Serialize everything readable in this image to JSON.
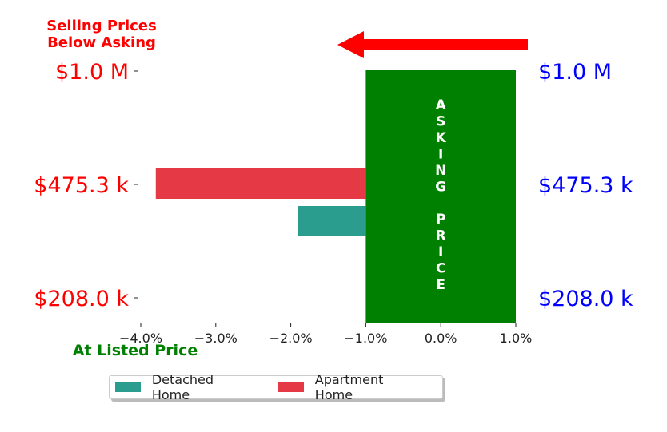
{
  "chart_data": {
    "type": "bar",
    "orientation": "horizontal",
    "title": "Selling Prices\nBelow Asking",
    "xlabel": "At Listed Price",
    "x_ticks": [
      -4.0,
      -3.0,
      -2.0,
      -1.0,
      0.0,
      1.0
    ],
    "x_tick_labels": [
      "−4.0%",
      "−3.0%",
      "−2.0%",
      "−1.0%",
      "0.0%",
      "1.0%"
    ],
    "xlim": [
      -4.0,
      1.0
    ],
    "y_tick_labels_left": [
      "$1.0 M",
      "$475.3 k",
      "$208.0 k"
    ],
    "y_tick_labels_right": [
      "$1.0 M",
      "$475.3 k",
      "$208.0 k"
    ],
    "series": [
      {
        "name": "Detached Home",
        "color": "#2a9d8f",
        "values": [
          -1.9
        ]
      },
      {
        "name": "Apartment Home",
        "color": "#e63946",
        "values": [
          -3.8
        ]
      }
    ],
    "asking_price_band": {
      "label": "ASKING PRICE",
      "letters_line1": [
        "A",
        "S",
        "K",
        "I",
        "N",
        "G"
      ],
      "letters_line2": [
        "P",
        "R",
        "I",
        "C",
        "E"
      ],
      "x_range": [
        -1.0,
        1.0
      ],
      "color": "#008000"
    },
    "arrow": {
      "direction": "left",
      "color": "#ff0000"
    },
    "colors": {
      "left_labels": "#ff0000",
      "right_labels": "#0000ff",
      "xlabel": "#008000",
      "title": "#ff0000"
    },
    "legend": {
      "position": "bottom-left",
      "entries": [
        "Detached Home",
        "Apartment Home"
      ]
    }
  }
}
